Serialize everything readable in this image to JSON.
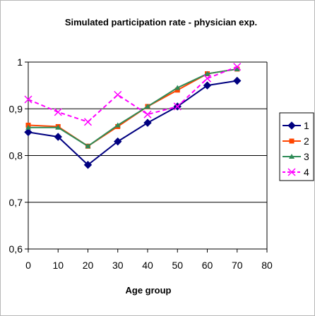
{
  "chart_data": {
    "type": "line",
    "title": "Simulated participation rate - physician exp.",
    "xlabel": "Age group",
    "ylabel": "",
    "xlim": [
      0,
      80
    ],
    "ylim": [
      0.6,
      1
    ],
    "x_ticks": [
      "0",
      "10",
      "20",
      "30",
      "40",
      "50",
      "60",
      "70",
      "80"
    ],
    "y_ticks": [
      "1",
      "0,9",
      "0,8",
      "0,7",
      "0,6"
    ],
    "y_tick_values": [
      1,
      0.9,
      0.8,
      0.7,
      0.6
    ],
    "x": [
      0,
      10,
      20,
      30,
      40,
      50,
      60,
      70
    ],
    "grid": "horizontal",
    "legend_position": "right",
    "series": [
      {
        "name": "1",
        "color": "#000080",
        "marker": "diamond",
        "dash": "solid",
        "values": [
          0.85,
          0.84,
          0.78,
          0.83,
          0.87,
          0.905,
          0.95,
          0.96
        ]
      },
      {
        "name": "2",
        "color": "#ff4500",
        "marker": "square",
        "dash": "solid",
        "values": [
          0.865,
          0.862,
          0.82,
          0.862,
          0.905,
          0.94,
          0.975,
          0.985
        ]
      },
      {
        "name": "3",
        "color": "#2e8b57",
        "marker": "triangle",
        "dash": "solid",
        "values": [
          0.86,
          0.86,
          0.82,
          0.865,
          0.905,
          0.945,
          0.975,
          0.985
        ]
      },
      {
        "name": "4",
        "color": "#ff00ff",
        "marker": "x",
        "dash": "dashed",
        "values": [
          0.92,
          0.893,
          0.872,
          0.93,
          0.888,
          0.905,
          0.965,
          0.99
        ]
      }
    ],
    "legend_labels": [
      "1",
      "2",
      "3",
      "4"
    ]
  }
}
